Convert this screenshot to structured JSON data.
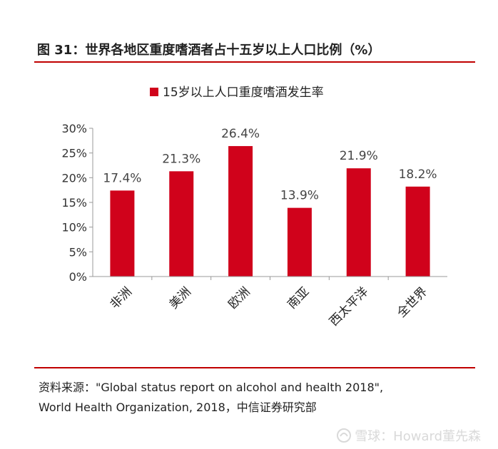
{
  "figure": {
    "title": "图 31：世界各地区重度嗜酒者占十五岁以上人口比例（%）"
  },
  "chart_data": {
    "type": "bar",
    "categories": [
      "非洲",
      "美洲",
      "欧洲",
      "南亚",
      "西太平洋",
      "全世界"
    ],
    "series": [
      {
        "name": "15岁以上人口重度嗜酒发生率",
        "values": [
          17.4,
          21.3,
          26.4,
          13.9,
          21.9,
          18.2
        ],
        "data_labels": [
          "17.4%",
          "21.3%",
          "26.4%",
          "13.9%",
          "21.9%",
          "18.2%"
        ],
        "color": "#d0021b"
      }
    ],
    "ylim": [
      0,
      30
    ],
    "yticks": [
      0,
      5,
      10,
      15,
      20,
      25,
      30
    ],
    "ytick_labels": [
      "0%",
      "5%",
      "10%",
      "15%",
      "20%",
      "25%",
      "30%"
    ],
    "legend_position": "top-center",
    "grid": false,
    "xlabel": "",
    "ylabel": ""
  },
  "source": {
    "line1": "资料来源：\"Global status report on alcohol and health 2018\",",
    "line2": "World Health Organization, 2018，中信证券研究部"
  },
  "watermark": {
    "text": "雪球：Howard董先森",
    "icon": "snowball-icon"
  },
  "colors": {
    "accent": "#c00000",
    "bar": "#d0021b"
  }
}
